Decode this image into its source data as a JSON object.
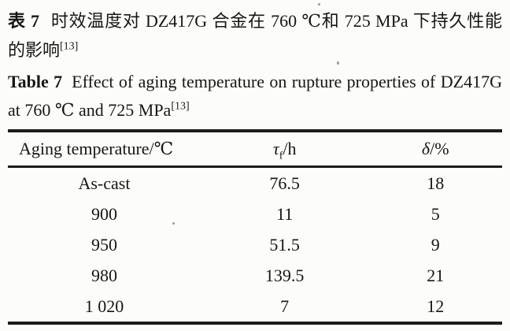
{
  "caption_zh": {
    "label": "表 7",
    "text": "时效温度对 DZ417G 合金在 760 ℃和 725 MPa 下持久性能的影响",
    "ref": "[13]"
  },
  "caption_en": {
    "label": "Table 7",
    "text": "Effect of aging temperature on rupture properties of DZ417G at 760 ℃ and 725 MPa",
    "ref": "[13]"
  },
  "table": {
    "columns": [
      {
        "label": "Aging temperature/℃",
        "symbol": "",
        "sub": "",
        "suffix": ""
      },
      {
        "label": "",
        "symbol": "τ",
        "sub": "f",
        "suffix": "/h"
      },
      {
        "label": "",
        "symbol": "δ",
        "sub": "",
        "suffix": "/%"
      }
    ],
    "rows": [
      [
        "As-cast",
        "76.5",
        "18"
      ],
      [
        "900",
        "11",
        "5"
      ],
      [
        "950",
        "51.5",
        "9"
      ],
      [
        "980",
        "139.5",
        "21"
      ],
      [
        "1 020",
        "7",
        "12"
      ]
    ]
  },
  "colors": {
    "paper_background": "#fcfcfa",
    "text": "#161616",
    "rule": "#1c1c1c"
  }
}
